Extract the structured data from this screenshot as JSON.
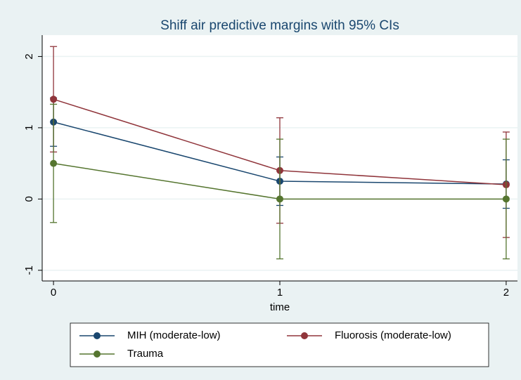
{
  "chart_data": {
    "type": "line",
    "title": "Shiff air predictive margins with 95% CIs",
    "x_label": "time",
    "x": [
      0,
      1,
      2
    ],
    "xlim": [
      -0.05,
      2.05
    ],
    "xticks": [
      0,
      1,
      2
    ],
    "ylim": [
      -1.15,
      2.3
    ],
    "yticks": [
      -1,
      0,
      1,
      2
    ],
    "grid": true,
    "series": [
      {
        "name": "MIH (moderate-low)",
        "color": "#1a476f",
        "values": [
          1.08,
          0.25,
          0.21
        ],
        "ci_low": [
          0.74,
          -0.09,
          -0.13
        ],
        "ci_high": [
          1.42,
          0.59,
          0.55
        ]
      },
      {
        "name": "Fluorosis (moderate-low)",
        "color": "#90353b",
        "values": [
          1.4,
          0.4,
          0.2
        ],
        "ci_low": [
          0.66,
          -0.34,
          -0.54
        ],
        "ci_high": [
          2.14,
          1.14,
          0.94
        ]
      },
      {
        "name": "Trauma",
        "color": "#55752f",
        "values": [
          0.5,
          0.0,
          0.0
        ],
        "ci_low": [
          -0.33,
          -0.84,
          -0.84
        ],
        "ci_high": [
          1.33,
          0.84,
          0.84
        ]
      }
    ]
  }
}
